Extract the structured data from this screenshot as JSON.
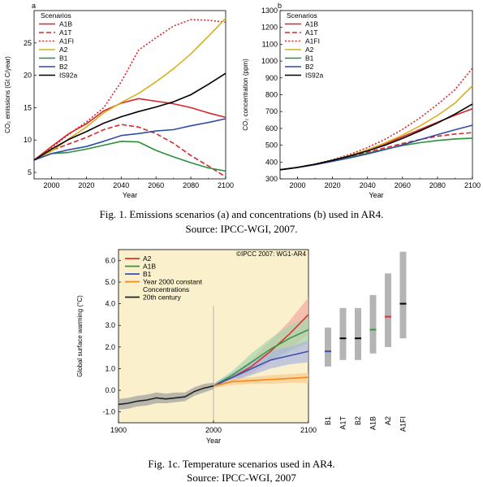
{
  "captions": {
    "fig1_line1": "Fig. 1. Emissions scenarios (a) and concentrations (b) used in AR4.",
    "fig1_line2": "Source: IPCC-WGI, 2007.",
    "fig1c_line1": "Fig. 1c. Temperature scenarios used in AR4.",
    "fig1c_line2": "Source: IPCC-WGI, 2007"
  },
  "chart_data": [
    {
      "type": "line",
      "panel_label": "a",
      "legend_title": "Scenarios",
      "xlabel": "Year",
      "ylabel": "CO₂ emissions (Gt C/year)",
      "xlim": [
        1990,
        2100
      ],
      "ylim": [
        4,
        30
      ],
      "xticks": [
        2000,
        2020,
        2040,
        2060,
        2080,
        2100
      ],
      "yticks": [
        5,
        10,
        15,
        20,
        25
      ],
      "series": [
        {
          "name": "A1B",
          "color": "#d9262b",
          "dash": "solid",
          "x": [
            1990,
            2000,
            2010,
            2020,
            2030,
            2040,
            2050,
            2060,
            2070,
            2080,
            2090,
            2100
          ],
          "y": [
            6.9,
            9.0,
            11.0,
            12.5,
            14.5,
            15.7,
            16.4,
            16.0,
            15.6,
            15.0,
            14.2,
            13.5
          ]
        },
        {
          "name": "A1T",
          "color": "#d9262b",
          "dash": "dashed",
          "x": [
            1990,
            2000,
            2010,
            2020,
            2030,
            2040,
            2050,
            2060,
            2070,
            2080,
            2090,
            2100
          ],
          "y": [
            6.9,
            8.4,
            9.4,
            10.4,
            11.6,
            12.4,
            12.0,
            11.0,
            9.5,
            7.6,
            6.0,
            4.3
          ]
        },
        {
          "name": "A1FI",
          "color": "#d9262b",
          "dash": "dotted",
          "x": [
            1990,
            2000,
            2010,
            2020,
            2030,
            2040,
            2050,
            2060,
            2070,
            2080,
            2090,
            2100
          ],
          "y": [
            6.9,
            8.8,
            10.9,
            12.8,
            15.0,
            19.0,
            23.9,
            25.8,
            27.6,
            28.6,
            28.5,
            28.2
          ]
        },
        {
          "name": "A2",
          "color": "#d6b11c",
          "dash": "solid",
          "x": [
            1990,
            2000,
            2010,
            2020,
            2030,
            2040,
            2050,
            2060,
            2070,
            2080,
            2090,
            2100
          ],
          "y": [
            6.9,
            8.3,
            10.2,
            12.0,
            14.2,
            15.8,
            17.2,
            19.0,
            21.0,
            23.3,
            26.0,
            28.8
          ]
        },
        {
          "name": "B1",
          "color": "#2c8f3a",
          "dash": "solid",
          "x": [
            1990,
            2000,
            2010,
            2020,
            2030,
            2040,
            2050,
            2060,
            2070,
            2080,
            2090,
            2100
          ],
          "y": [
            6.9,
            7.9,
            8.1,
            8.6,
            9.2,
            9.8,
            9.7,
            8.4,
            7.4,
            6.5,
            5.7,
            5.2
          ]
        },
        {
          "name": "B2",
          "color": "#2f4fa3",
          "dash": "solid",
          "x": [
            1990,
            2000,
            2010,
            2020,
            2030,
            2040,
            2050,
            2060,
            2070,
            2080,
            2090,
            2100
          ],
          "y": [
            6.9,
            7.9,
            8.5,
            9.0,
            9.8,
            10.7,
            11.0,
            11.4,
            11.6,
            12.2,
            12.7,
            13.3
          ]
        },
        {
          "name": "IS92a",
          "color": "#000000",
          "dash": "solid",
          "x": [
            1990,
            2000,
            2010,
            2020,
            2030,
            2040,
            2050,
            2060,
            2070,
            2080,
            2090,
            2100
          ],
          "y": [
            6.9,
            8.6,
            10.1,
            11.3,
            12.6,
            13.6,
            14.4,
            15.1,
            15.9,
            17.0,
            18.6,
            20.3
          ]
        }
      ]
    },
    {
      "type": "line",
      "panel_label": "b",
      "legend_title": "Scenarios",
      "xlabel": "Year",
      "ylabel": "CO₂ concentration (ppm)",
      "xlim": [
        1990,
        2100
      ],
      "ylim": [
        300,
        1300
      ],
      "xticks": [
        2000,
        2020,
        2040,
        2060,
        2080,
        2100
      ],
      "yticks": [
        300,
        400,
        500,
        600,
        700,
        800,
        900,
        1000,
        1100,
        1200,
        1300
      ],
      "series": [
        {
          "name": "A1B",
          "color": "#d9262b",
          "dash": "solid",
          "x": [
            1990,
            2000,
            2010,
            2020,
            2030,
            2040,
            2050,
            2060,
            2070,
            2080,
            2090,
            2100
          ],
          "y": [
            354,
            368,
            387,
            410,
            438,
            472,
            508,
            550,
            593,
            636,
            678,
            717
          ]
        },
        {
          "name": "A1T",
          "color": "#d9262b",
          "dash": "dashed",
          "x": [
            1990,
            2000,
            2010,
            2020,
            2030,
            2040,
            2050,
            2060,
            2070,
            2080,
            2090,
            2100
          ],
          "y": [
            354,
            368,
            386,
            407,
            432,
            458,
            484,
            510,
            534,
            553,
            566,
            575
          ]
        },
        {
          "name": "A1FI",
          "color": "#d9262b",
          "dash": "dotted",
          "x": [
            1990,
            2000,
            2010,
            2020,
            2030,
            2040,
            2050,
            2060,
            2070,
            2080,
            2090,
            2100
          ],
          "y": [
            354,
            368,
            388,
            414,
            446,
            486,
            535,
            594,
            663,
            742,
            830,
            958
          ]
        },
        {
          "name": "A2",
          "color": "#d6b11c",
          "dash": "solid",
          "x": [
            1990,
            2000,
            2010,
            2020,
            2030,
            2040,
            2050,
            2060,
            2070,
            2080,
            2090,
            2100
          ],
          "y": [
            354,
            368,
            386,
            410,
            438,
            473,
            513,
            560,
            615,
            677,
            750,
            853
          ]
        },
        {
          "name": "B1",
          "color": "#2c8f3a",
          "dash": "solid",
          "x": [
            1990,
            2000,
            2010,
            2020,
            2030,
            2040,
            2050,
            2060,
            2070,
            2080,
            2090,
            2100
          ],
          "y": [
            354,
            368,
            385,
            406,
            428,
            452,
            476,
            498,
            515,
            528,
            537,
            542
          ]
        },
        {
          "name": "B2",
          "color": "#2f4fa3",
          "dash": "solid",
          "x": [
            1990,
            2000,
            2010,
            2020,
            2030,
            2040,
            2050,
            2060,
            2070,
            2080,
            2090,
            2100
          ],
          "y": [
            354,
            368,
            384,
            404,
            425,
            448,
            474,
            502,
            533,
            563,
            592,
            619
          ]
        },
        {
          "name": "IS92a",
          "color": "#000000",
          "dash": "solid",
          "x": [
            1990,
            2000,
            2010,
            2020,
            2030,
            2040,
            2050,
            2060,
            2070,
            2080,
            2090,
            2100
          ],
          "y": [
            354,
            368,
            387,
            410,
            436,
            466,
            500,
            540,
            585,
            632,
            685,
            745
          ]
        }
      ]
    },
    {
      "type": "line",
      "panel_label": "",
      "xlabel": "Year",
      "ylabel": "Global surface warming (°C)",
      "watermark": "©IPCC 2007: WG1-AR4",
      "xlim": [
        1900,
        2100
      ],
      "ylim": [
        -1.5,
        6.5
      ],
      "xticks": [
        1900,
        2000,
        2100
      ],
      "yticks": [
        -1.0,
        0.0,
        1.0,
        2.0,
        3.0,
        4.0,
        5.0,
        6.0
      ],
      "ytick_labels": [
        "-1.0",
        "0.0",
        "1.0",
        "2.0",
        "3.0",
        "4.0",
        "5.0",
        "6.0"
      ],
      "background": "#faf1cc",
      "vline_x": 2000,
      "series": [
        {
          "name": "A2",
          "color": "#e0302f",
          "band": "#f3a8a3",
          "x": [
            2000,
            2020,
            2040,
            2060,
            2080,
            2100
          ],
          "y": [
            0.2,
            0.6,
            1.1,
            1.8,
            2.6,
            3.5
          ],
          "lo": [
            0.1,
            0.4,
            0.8,
            1.3,
            1.9,
            2.6
          ],
          "hi": [
            0.3,
            0.8,
            1.4,
            2.3,
            3.2,
            4.3
          ]
        },
        {
          "name": "A1B",
          "color": "#2f9a3f",
          "band": "#a6d6ad",
          "x": [
            2000,
            2020,
            2040,
            2060,
            2080,
            2100
          ],
          "y": [
            0.2,
            0.7,
            1.3,
            1.9,
            2.4,
            2.8
          ],
          "lo": [
            0.1,
            0.5,
            0.9,
            1.4,
            1.8,
            2.2
          ],
          "hi": [
            0.3,
            0.9,
            1.7,
            2.4,
            3.0,
            3.4
          ]
        },
        {
          "name": "B1",
          "color": "#3b4fb0",
          "band": "#aab5de",
          "x": [
            2000,
            2020,
            2040,
            2060,
            2080,
            2100
          ],
          "y": [
            0.2,
            0.6,
            1.0,
            1.4,
            1.6,
            1.8
          ],
          "lo": [
            0.1,
            0.4,
            0.7,
            1.0,
            1.2,
            1.3
          ],
          "hi": [
            0.3,
            0.8,
            1.3,
            1.8,
            2.0,
            2.3
          ]
        },
        {
          "name": "Year 2000 constant\nConcentrations",
          "color": "#f08a1e",
          "band": "#f8c98c",
          "x": [
            2000,
            2020,
            2040,
            2060,
            2080,
            2100
          ],
          "y": [
            0.2,
            0.4,
            0.45,
            0.5,
            0.55,
            0.6
          ],
          "lo": [
            0.1,
            0.25,
            0.3,
            0.3,
            0.35,
            0.35
          ],
          "hi": [
            0.3,
            0.55,
            0.6,
            0.7,
            0.75,
            0.8
          ]
        },
        {
          "name": "20th century",
          "color": "#222222",
          "band": "#9c9c9c",
          "x": [
            1900,
            1910,
            1920,
            1930,
            1940,
            1950,
            1960,
            1970,
            1980,
            1990,
            2000
          ],
          "y": [
            -0.65,
            -0.6,
            -0.5,
            -0.45,
            -0.35,
            -0.4,
            -0.35,
            -0.3,
            -0.05,
            0.1,
            0.2
          ],
          "lo": [
            -0.9,
            -0.85,
            -0.75,
            -0.7,
            -0.6,
            -0.6,
            -0.55,
            -0.5,
            -0.25,
            -0.1,
            0.05
          ],
          "hi": [
            -0.4,
            -0.35,
            -0.25,
            -0.2,
            -0.1,
            -0.15,
            -0.1,
            -0.1,
            0.15,
            0.3,
            0.35
          ]
        }
      ],
      "range_bars": [
        {
          "name": "B1",
          "label_color": "#3b4fb0",
          "low": 1.1,
          "high": 2.9,
          "best": 1.8,
          "best_color": "#3b4fb0"
        },
        {
          "name": "A1T",
          "label_color": "#000000",
          "low": 1.4,
          "high": 3.8,
          "best": 2.4,
          "best_color": "#000000"
        },
        {
          "name": "B2",
          "label_color": "#000000",
          "low": 1.4,
          "high": 3.8,
          "best": 2.4,
          "best_color": "#000000"
        },
        {
          "name": "A1B",
          "label_color": "#2f9a3f",
          "low": 1.7,
          "high": 4.4,
          "best": 2.8,
          "best_color": "#2f9a3f"
        },
        {
          "name": "A2",
          "label_color": "#e0302f",
          "low": 2.0,
          "high": 5.4,
          "best": 3.4,
          "best_color": "#e0302f"
        },
        {
          "name": "A1FI",
          "label_color": "#000000",
          "low": 2.4,
          "high": 6.4,
          "best": 4.0,
          "best_color": "#000000"
        }
      ]
    }
  ]
}
